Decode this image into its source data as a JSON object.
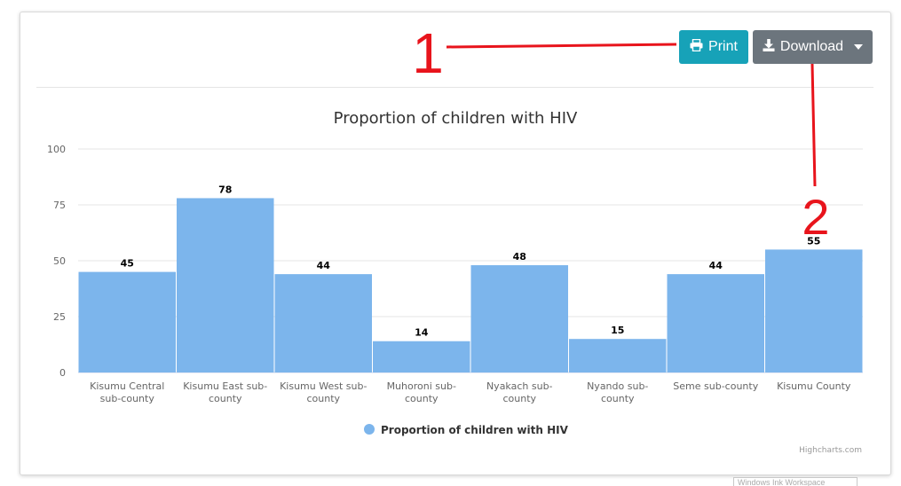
{
  "toolbar": {
    "print_label": "Print",
    "download_label": "Download",
    "print_icon": "printer-icon",
    "download_icon": "download-icon",
    "print_color": "#17a2b8",
    "download_color": "#6c757d"
  },
  "annotations": {
    "marker_1": "1",
    "marker_2": "2",
    "color": "#e8141c"
  },
  "credits": "Highcharts.com",
  "taskbar_hint": "Windows Ink Workspace",
  "chart_data": {
    "type": "bar",
    "title": "Proportion of children with HIV",
    "categories": [
      [
        "Kisumu Central",
        "sub-county"
      ],
      [
        "Kisumu East sub-",
        "county"
      ],
      [
        "Kisumu West sub-",
        "county"
      ],
      [
        "Muhoroni sub-",
        "county"
      ],
      [
        "Nyakach sub-",
        "county"
      ],
      [
        "Nyando sub-",
        "county"
      ],
      [
        "Seme sub-county"
      ],
      [
        "Kisumu County"
      ]
    ],
    "series": [
      {
        "name": "Proportion of children with HIV",
        "values": [
          45,
          78,
          44,
          14,
          48,
          15,
          44,
          55
        ],
        "color": "#7cb5ec"
      }
    ],
    "ylim": [
      0,
      100
    ],
    "yticks": [
      0,
      25,
      50,
      75,
      100
    ],
    "grid": true,
    "legend": "bottom-center",
    "data_labels": true
  }
}
